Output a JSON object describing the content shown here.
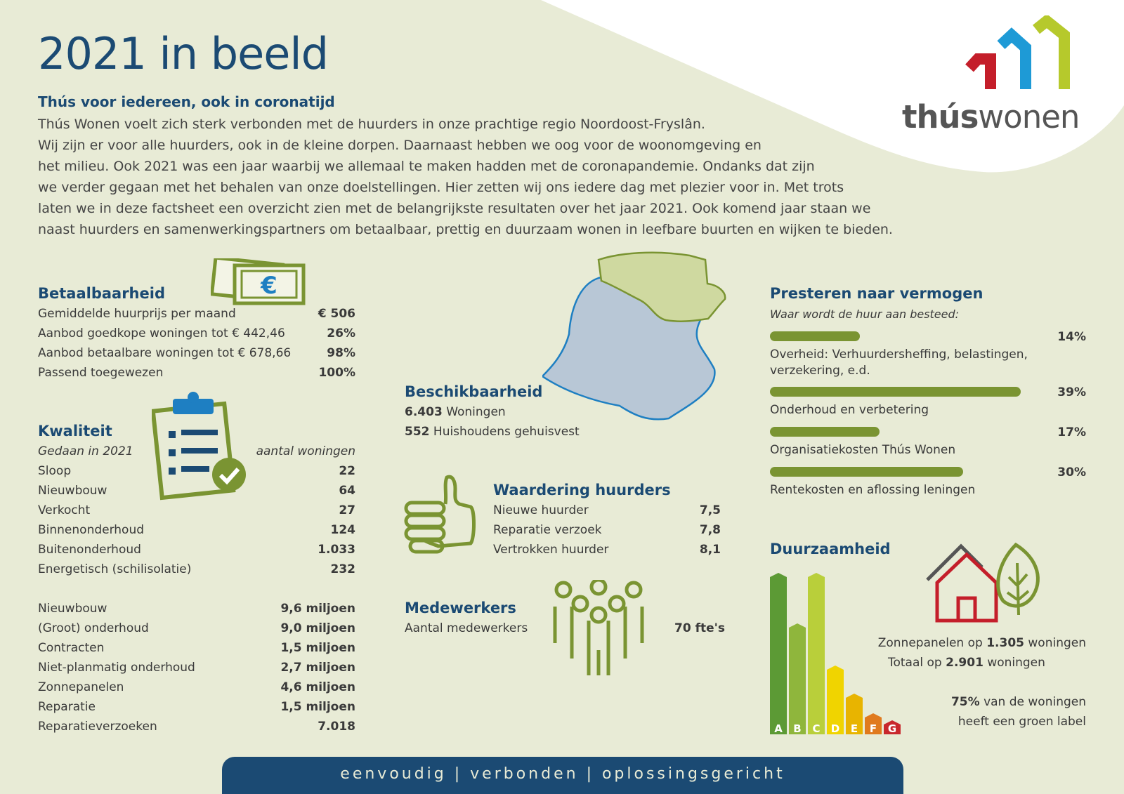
{
  "header": {
    "title": "2021 in beeld",
    "subtitle": "Thús voor iedereen, ook in coronatijd",
    "intro_lines": [
      "Thús Wonen voelt zich sterk verbonden met de huurders in onze prachtige regio Noordoost-Fryslân.",
      "Wij zijn er voor alle huurders, ook in de kleine dorpen. Daarnaast hebben we oog voor de woonomgeving en",
      "het milieu. Ook 2021 was een jaar waarbij we allemaal te maken hadden met de coronapandemie. Ondanks dat zijn",
      "we verder gegaan met het behalen van onze doelstellingen. Hier zetten wij ons iedere dag met plezier voor in. Met trots",
      "laten we in deze factsheet een overzicht zien met de belangrijkste resultaten over het jaar 2021. Ook komend jaar staan we",
      "naast huurders en samenwerkingspartners om betaalbaar, prettig en duurzaam wonen in leefbare buurten en wijken te bieden."
    ]
  },
  "logo": {
    "part1": "thús",
    "part2": "wonen"
  },
  "betaalbaarheid": {
    "heading": "Betaalbaarheid",
    "rows": [
      {
        "label": "Gemiddelde huurprijs per maand",
        "value": "€ 506"
      },
      {
        "label": "Aanbod goedkope woningen tot € 442,46",
        "value": "26%"
      },
      {
        "label": "Aanbod betaalbare woningen tot € 678,66",
        "value": "98%"
      },
      {
        "label": "Passend toegewezen",
        "value": "100%"
      }
    ]
  },
  "kwaliteit": {
    "heading": "Kwaliteit",
    "sub_left": "Gedaan in 2021",
    "sub_right": "aantal woningen",
    "rows": [
      {
        "label": "Sloop",
        "value": "22"
      },
      {
        "label": "Nieuwbouw",
        "value": "64"
      },
      {
        "label": "Verkocht",
        "value": "27"
      },
      {
        "label": "Binnenonderhoud",
        "value": "124"
      },
      {
        "label": "Buitenonderhoud",
        "value": "1.033"
      },
      {
        "label": "Energetisch (schilisolatie)",
        "value": "232"
      }
    ]
  },
  "investeringen": {
    "rows": [
      {
        "label": "Nieuwbouw",
        "value": "9,6 miljoen"
      },
      {
        "label": "(Groot) onderhoud",
        "value": "9,0 miljoen"
      },
      {
        "label": "Contracten",
        "value": "1,5 miljoen"
      },
      {
        "label": "Niet-planmatig onderhoud",
        "value": "2,7 miljoen"
      },
      {
        "label": "Zonnepanelen",
        "value": "4,6 miljoen"
      },
      {
        "label": "Reparatie",
        "value": "1,5 miljoen"
      },
      {
        "label": "Reparatieverzoeken",
        "value": "7.018"
      }
    ]
  },
  "beschikbaarheid": {
    "heading": "Beschikbaarheid",
    "line1_value": "6.403",
    "line1_label": "Woningen",
    "line2_value": "552",
    "line2_label": "Huishoudens gehuisvest"
  },
  "waardering": {
    "heading": "Waardering huurders",
    "rows": [
      {
        "label": "Nieuwe huurder",
        "value": "7,5"
      },
      {
        "label": "Reparatie verzoek",
        "value": "7,8"
      },
      {
        "label": "Vertrokken huurder",
        "value": "8,1"
      }
    ]
  },
  "medewerkers": {
    "heading": "Medewerkers",
    "label": "Aantal medewerkers",
    "value": "70 fte's"
  },
  "presteren": {
    "heading": "Presteren naar vermogen",
    "subheading": "Waar wordt de huur aan besteed:",
    "items": [
      {
        "label": "Overheid: Verhuurdersheffing, belastingen, verzekering, e.d.",
        "percent": 14,
        "percent_label": "14%"
      },
      {
        "label": "Onderhoud en verbetering",
        "percent": 39,
        "percent_label": "39%"
      },
      {
        "label": "Organisatiekosten Thús Wonen",
        "percent": 17,
        "percent_label": "17%"
      },
      {
        "label": "Rentekosten en aflossing leningen",
        "percent": 30,
        "percent_label": "30%"
      }
    ]
  },
  "duurzaamheid": {
    "heading": "Duurzaamheid",
    "line1_pre": "Zonnepanelen op",
    "line1_value": "1.305",
    "line1_post": "woningen",
    "line2_pre": "Totaal op",
    "line2_value": "2.901",
    "line2_post": "woningen",
    "line3_value": "75%",
    "line3_post": "van de woningen",
    "line4": "heeft een groen label",
    "energy_labels": [
      "A",
      "B",
      "C",
      "D",
      "E",
      "F",
      "G"
    ],
    "energy_colors": [
      "#5c9a35",
      "#8fb63c",
      "#b9cf3a",
      "#f0d400",
      "#e8b400",
      "#e07a1e",
      "#c8282d"
    ]
  },
  "footer": {
    "text": "eenvoudig | verbonden | oplossingsgericht"
  },
  "colors": {
    "navy": "#1b4a73",
    "olive": "#7a9432",
    "background": "#e8ebd6"
  }
}
